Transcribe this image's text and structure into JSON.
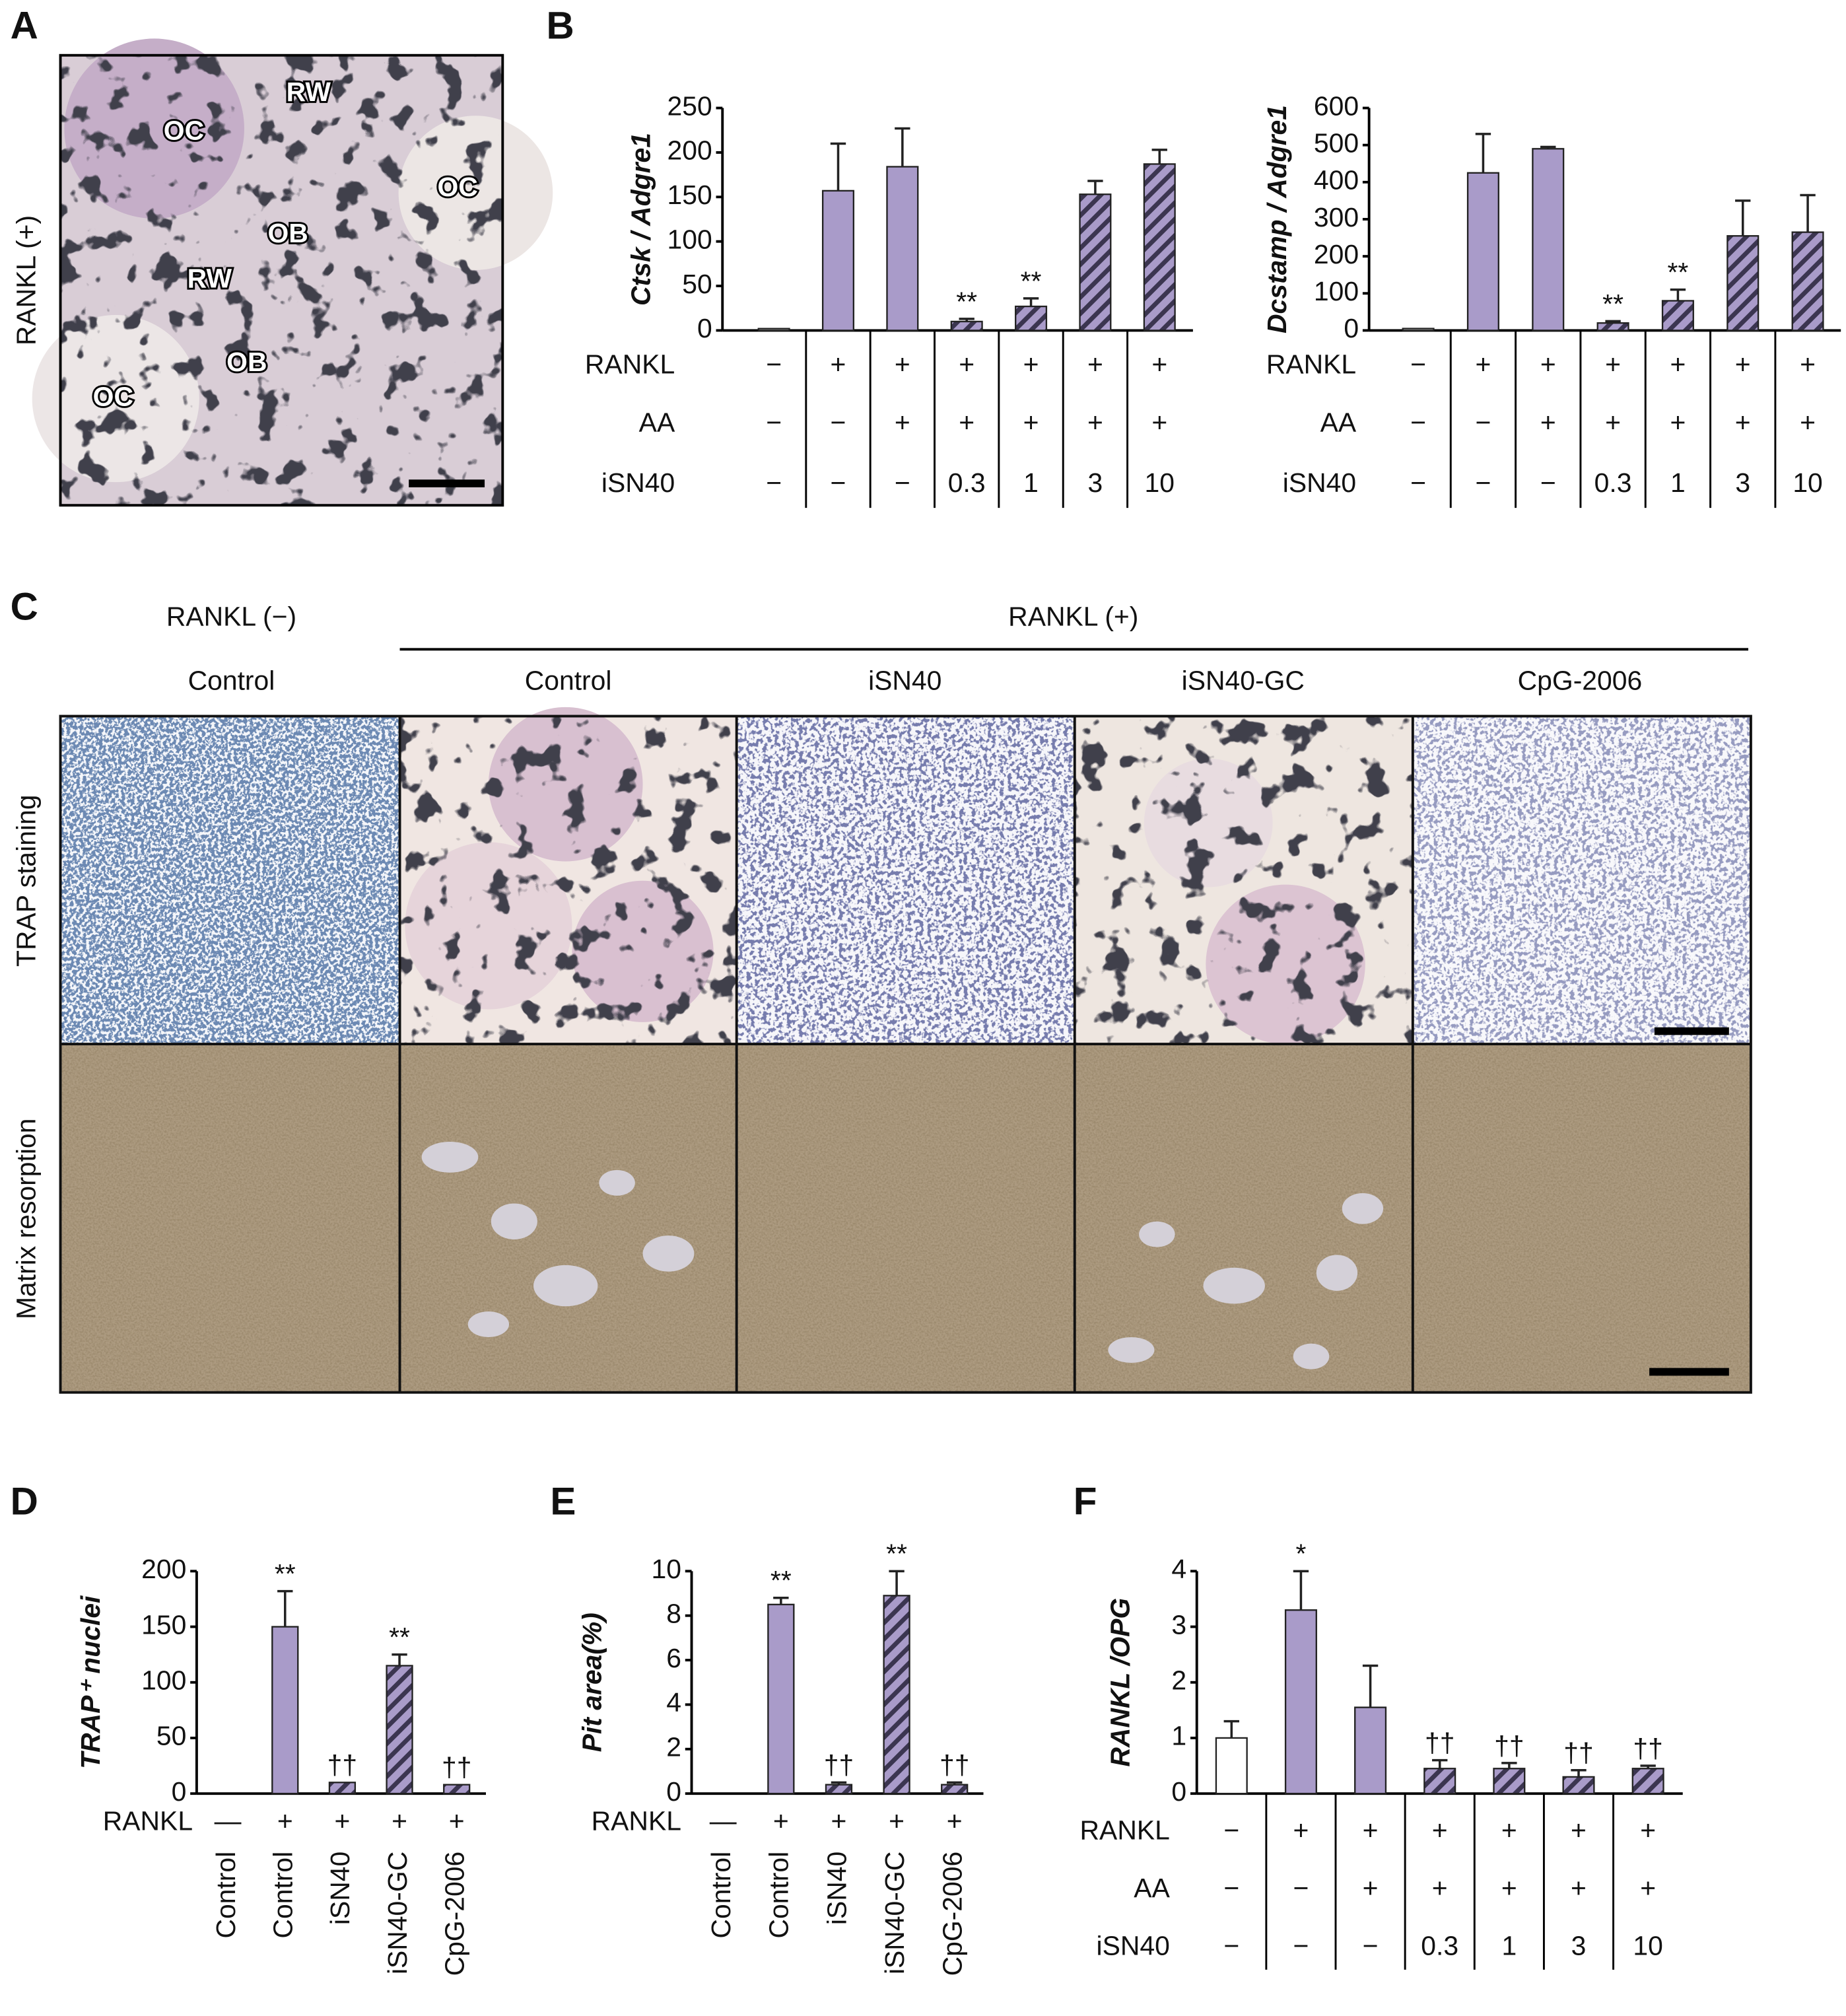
{
  "figure": {
    "panel_labels": [
      "A",
      "B",
      "C",
      "D",
      "E",
      "F"
    ],
    "panel_a": {
      "side_label": "RANKL (+)",
      "labels": [
        "OC",
        "RW",
        "OC",
        "OB",
        "RW",
        "OB",
        "OC"
      ]
    },
    "panel_c": {
      "group_labels": [
        "RANKL (−)",
        "RANKL (+)"
      ],
      "column_labels": [
        "Control",
        "Control",
        "iSN40",
        "iSN40-GC",
        "CpG-2006"
      ],
      "row_labels": [
        "TRAP staining",
        "Matrix resorption"
      ]
    }
  },
  "chart_data": [
    {
      "type": "bar",
      "ylabel": "Ctsk / Adgre1",
      "ylim": [
        0,
        250
      ],
      "yticks": [
        0,
        50,
        100,
        150,
        200,
        250
      ],
      "series": [
        {
          "color": "#a99bc9",
          "values": [
            2,
            157,
            184,
            10,
            27,
            153,
            187
          ],
          "errors": [
            null,
            53,
            43,
            3,
            9,
            15,
            16
          ],
          "patterns": [
            "white",
            "solid",
            "solid",
            "hatch",
            "hatch",
            "hatch",
            "hatch"
          ]
        }
      ],
      "significance": [
        null,
        null,
        null,
        "**",
        "**",
        null,
        null
      ],
      "conditions": [
        {
          "label": "RANKL",
          "values": [
            "−",
            "+",
            "+",
            "+",
            "+",
            "+",
            "+"
          ]
        },
        {
          "label": "AA",
          "values": [
            "−",
            "−",
            "+",
            "+",
            "+",
            "+",
            "+"
          ]
        },
        {
          "label": "iSN40",
          "values": [
            "−",
            "−",
            "−",
            "0.3",
            "1",
            "3",
            "10"
          ]
        }
      ]
    },
    {
      "type": "bar",
      "ylabel": "Dcstamp / Adgre1",
      "ylim": [
        0,
        600
      ],
      "yticks": [
        0,
        100,
        200,
        300,
        400,
        500,
        600
      ],
      "series": [
        {
          "color": "#a99bc9",
          "values": [
            5,
            425,
            490,
            20,
            80,
            255,
            265
          ],
          "errors": [
            null,
            105,
            5,
            5,
            30,
            95,
            100
          ],
          "patterns": [
            "white",
            "solid",
            "solid",
            "hatch",
            "hatch",
            "hatch",
            "hatch"
          ]
        }
      ],
      "significance": [
        null,
        null,
        null,
        "**",
        "**",
        null,
        null
      ],
      "conditions": [
        {
          "label": "RANKL",
          "values": [
            "−",
            "+",
            "+",
            "+",
            "+",
            "+",
            "+"
          ]
        },
        {
          "label": "AA",
          "values": [
            "−",
            "−",
            "+",
            "+",
            "+",
            "+",
            "+"
          ]
        },
        {
          "label": "iSN40",
          "values": [
            "−",
            "−",
            "−",
            "0.3",
            "1",
            "3",
            "10"
          ]
        }
      ]
    },
    {
      "type": "bar",
      "ylabel": "TRAP⁺ nuclei",
      "ylim": [
        0,
        200
      ],
      "yticks": [
        0,
        50,
        100,
        150,
        200
      ],
      "categories": [
        "Control",
        "Control",
        "iSN40",
        "iSN40-GC",
        "CpG-2006"
      ],
      "series": [
        {
          "color": "#a99bc9",
          "values": [
            0,
            150,
            10,
            115,
            8
          ],
          "errors": [
            null,
            32,
            null,
            10,
            null
          ],
          "patterns": [
            "white",
            "solid",
            "hatch",
            "hatch",
            "hatch"
          ]
        }
      ],
      "significance": [
        null,
        "**",
        "††",
        "**",
        "††"
      ],
      "conditions": [
        {
          "label": "RANKL",
          "values": [
            "—",
            "+",
            "+",
            "+",
            "+"
          ]
        }
      ]
    },
    {
      "type": "bar",
      "ylabel": "Pit area(%)",
      "ylim": [
        0,
        10
      ],
      "yticks": [
        0,
        2,
        4,
        6,
        8,
        10
      ],
      "categories": [
        "Control",
        "Control",
        "iSN40",
        "iSN40-GC",
        "CpG-2006"
      ],
      "series": [
        {
          "color": "#a99bc9",
          "values": [
            0,
            8.5,
            0.4,
            8.9,
            0.4
          ],
          "errors": [
            null,
            0.3,
            0.1,
            1.1,
            0.1
          ],
          "patterns": [
            "white",
            "solid",
            "hatch",
            "hatch",
            "hatch"
          ]
        }
      ],
      "significance": [
        null,
        "**",
        "††",
        "**",
        "††"
      ],
      "conditions": [
        {
          "label": "RANKL",
          "values": [
            "—",
            "+",
            "+",
            "+",
            "+"
          ]
        }
      ]
    },
    {
      "type": "bar",
      "ylabel": "RANKL /OPG",
      "ylim": [
        0,
        4
      ],
      "yticks": [
        0,
        1,
        2,
        3,
        4
      ],
      "series": [
        {
          "color": "#a99bc9",
          "values": [
            1.0,
            3.3,
            1.55,
            0.45,
            0.45,
            0.3,
            0.45
          ],
          "errors": [
            0.3,
            0.7,
            0.75,
            0.15,
            0.1,
            0.12,
            0.05
          ],
          "patterns": [
            "white",
            "solid",
            "solid",
            "hatch",
            "hatch",
            "hatch",
            "hatch"
          ]
        }
      ],
      "significance": [
        null,
        "*",
        null,
        "††",
        "††",
        "††",
        "††"
      ],
      "conditions": [
        {
          "label": "RANKL",
          "values": [
            "−",
            "+",
            "+",
            "+",
            "+",
            "+",
            "+"
          ]
        },
        {
          "label": "AA",
          "values": [
            "−",
            "−",
            "+",
            "+",
            "+",
            "+",
            "+"
          ]
        },
        {
          "label": "iSN40",
          "values": [
            "−",
            "−",
            "−",
            "0.3",
            "1",
            "3",
            "10"
          ]
        }
      ]
    }
  ]
}
